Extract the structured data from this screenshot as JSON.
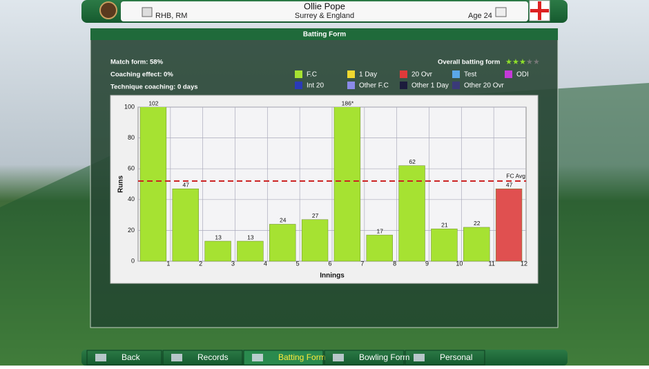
{
  "header": {
    "name": "Ollie Pope",
    "role": "RHB, RM",
    "team": "Surrey & England",
    "age": "Age 24"
  },
  "panel_title": "Batting Form",
  "stats": [
    "Match form: 58%",
    "Coaching effect: 0%",
    "Technique coaching: 0 days"
  ],
  "overall": {
    "label": "Overall batting form",
    "stars": 3,
    "max_stars": 5
  },
  "legend": [
    {
      "name": "F.C",
      "color": "#a6e232"
    },
    {
      "name": "1 Day",
      "color": "#f0d830"
    },
    {
      "name": "20 Ovr",
      "color": "#e03a3a"
    },
    {
      "name": "Test",
      "color": "#5aa8e8"
    },
    {
      "name": "ODI",
      "color": "#c43ad8"
    },
    {
      "name": "Int 20",
      "color": "#2a3ab8"
    },
    {
      "name": "Other F.C",
      "color": "#8a8ae8"
    },
    {
      "name": "Other 1 Day",
      "color": "#1c1c3c"
    },
    {
      "name": "Other 20 Ovr",
      "color": "#3a3a78"
    }
  ],
  "chart_data": {
    "type": "bar",
    "x_label": "Innings",
    "y_label": "Runs",
    "categories": [
      "1",
      "2",
      "3",
      "4",
      "5",
      "6",
      "7",
      "8",
      "9",
      "10",
      "11",
      "12"
    ],
    "values": [
      102,
      47,
      13,
      13,
      24,
      27,
      186,
      17,
      62,
      21,
      22,
      47
    ],
    "value_labels": [
      "102",
      "47",
      "13",
      "13",
      "24",
      "27",
      "186*",
      "17",
      "62",
      "21",
      "22",
      "47"
    ],
    "colors": [
      "#a6e232",
      "#a6e232",
      "#a6e232",
      "#a6e232",
      "#a6e232",
      "#a6e232",
      "#a6e232",
      "#a6e232",
      "#a6e232",
      "#a6e232",
      "#a6e232",
      "#e05050"
    ],
    "ylim": [
      0,
      100
    ],
    "yticks": [
      0,
      20,
      40,
      60,
      80,
      100
    ],
    "grid": true,
    "reference_line": {
      "value": 52,
      "label": "FC Avg",
      "color": "#cc2222"
    }
  },
  "nav": [
    "Back",
    "Records",
    "Batting Form",
    "Bowling Form",
    "Personal"
  ],
  "nav_active": 2
}
